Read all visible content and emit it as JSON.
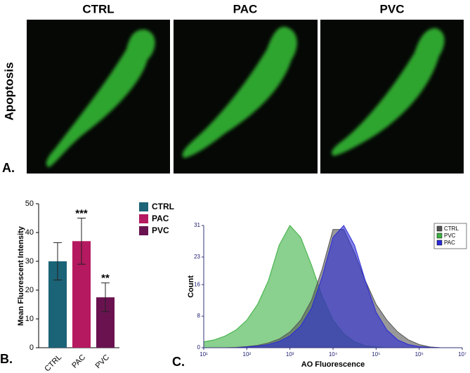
{
  "panel_a": {
    "label": "A.",
    "row_label": "Apoptosis",
    "columns": [
      "CTRL",
      "PAC",
      "PVC"
    ]
  },
  "chart_data": [
    {
      "type": "bar",
      "panel_label": "B.",
      "ylabel": "Mean Fluorescent Intensity",
      "categories": [
        "CTRL",
        "PAC",
        "PVC"
      ],
      "values": [
        30,
        37,
        17.5
      ],
      "errors": [
        6.5,
        8,
        5
      ],
      "colors": [
        "#1b6377",
        "#b5195f",
        "#6a1250"
      ],
      "annotations": [
        {
          "index": 1,
          "text": "***"
        },
        {
          "index": 2,
          "text": "**"
        }
      ],
      "ylim": [
        0,
        50
      ],
      "yticks": [
        0,
        10,
        20,
        30,
        40,
        50
      ],
      "legend": "right"
    },
    {
      "type": "area",
      "panel_label": "C.",
      "xlabel": "AO Fluorescence",
      "ylabel": "Count",
      "xscale": "log",
      "x": [
        10,
        17.78,
        31.62,
        56.23,
        100,
        177.8,
        316.2,
        562.3,
        1000,
        1778,
        3162,
        5623,
        10000,
        17783,
        31623,
        56234,
        100000,
        177828,
        316228,
        562341,
        1000000,
        1778279,
        3162278,
        5623413,
        10000000
      ],
      "series": [
        {
          "name": "PVC",
          "color": "#3cb043",
          "values": [
            1.5,
            2,
            3,
            4.5,
            7,
            11,
            17,
            26,
            31,
            28,
            21,
            13,
            7,
            3.5,
            1.5,
            0.5,
            0.2,
            0,
            0,
            0,
            0,
            0,
            0,
            0,
            0
          ]
        },
        {
          "name": "CTRL",
          "color": "#555555",
          "values": [
            0,
            0,
            0,
            0.1,
            0.3,
            0.6,
            1.2,
            2.2,
            4,
            7,
            12,
            20,
            30,
            30,
            24,
            17,
            11,
            7,
            4,
            2,
            0.8,
            0.2,
            0,
            0,
            0
          ]
        },
        {
          "name": "PAC",
          "color": "#2b2bd6",
          "values": [
            0,
            0,
            0,
            0,
            0.2,
            0.4,
            0.8,
            1.6,
            3,
            5.5,
            10,
            18,
            28,
            31,
            26,
            17,
            9,
            4.5,
            2,
            0.8,
            0.3,
            0.1,
            0,
            0,
            0
          ]
        }
      ],
      "legend_order": [
        1,
        0,
        2
      ],
      "xlim": [
        10,
        10000000
      ],
      "xticks": [
        {
          "value": 10,
          "label": "10¹"
        },
        {
          "value": 100,
          "label": "10²"
        },
        {
          "value": 1000,
          "label": "10³"
        },
        {
          "value": 10000,
          "label": "10⁴"
        },
        {
          "value": 100000,
          "label": "10⁵"
        },
        {
          "value": 1000000,
          "label": "10⁶"
        },
        {
          "value": 10000000,
          "label": "10⁷"
        }
      ],
      "ylim": [
        0,
        31
      ],
      "yticks": [
        0,
        8,
        16,
        23,
        31
      ],
      "legend": "upper right"
    }
  ]
}
